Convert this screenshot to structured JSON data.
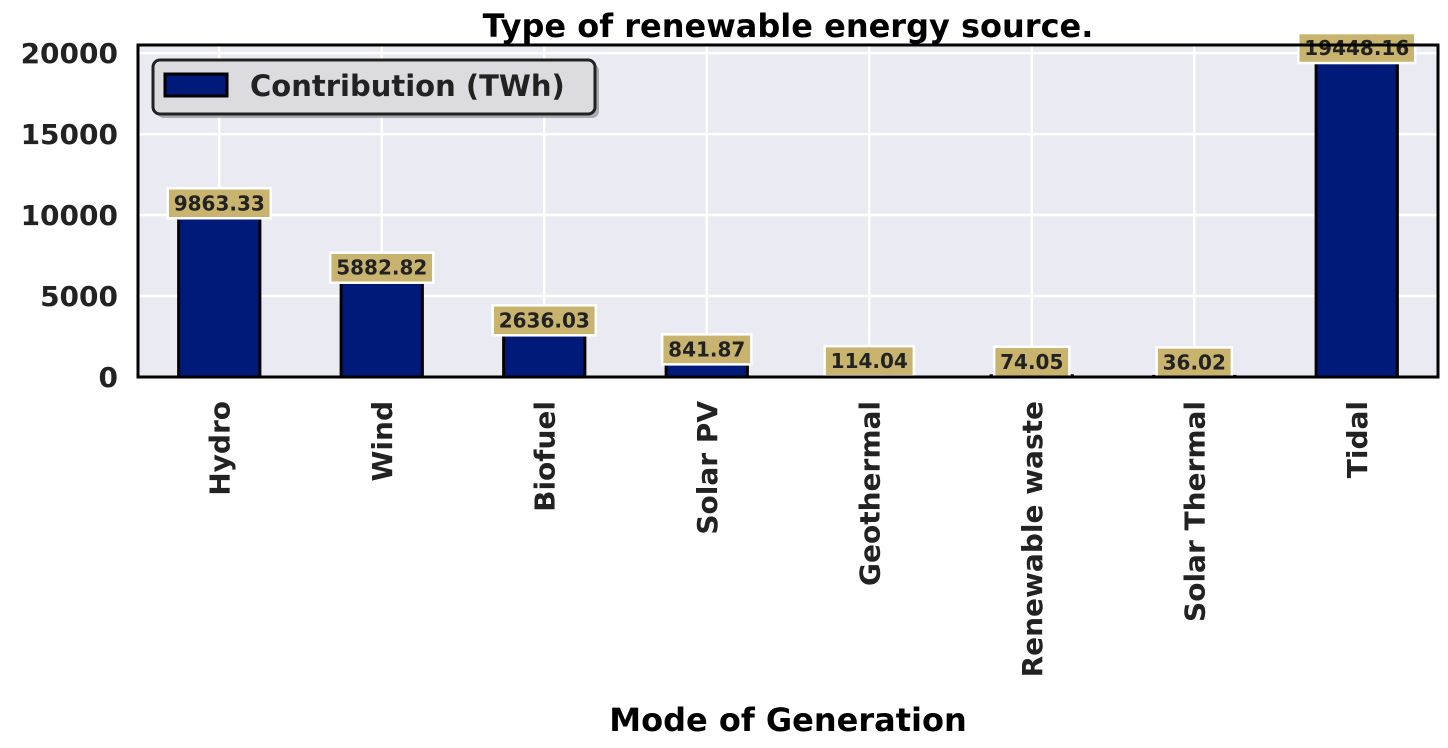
{
  "chart_data": {
    "type": "bar",
    "title": "Type of renewable energy source.",
    "xlabel": "Mode of Generation",
    "ylabel": "",
    "categories": [
      "Hydro",
      "Wind",
      "Biofuel",
      "Solar PV",
      "Geothermal",
      "Renewable waste",
      "Solar Thermal",
      "Tidal"
    ],
    "series": [
      {
        "name": "Contribution (TWh)",
        "values": [
          9863.33,
          5882.82,
          2636.03,
          841.87,
          114.04,
          74.05,
          36.02,
          19448.16
        ],
        "labels": [
          "9863.33",
          "5882.82",
          "2636.03",
          "841.87",
          "114.04",
          "74.05",
          "36.02",
          "19448.16"
        ]
      }
    ],
    "ylim": [
      0,
      20500
    ],
    "yticks": [
      0,
      5000,
      10000,
      15000,
      20000
    ],
    "ytick_labels": [
      "0",
      "5000",
      "10000",
      "15000",
      "20000"
    ],
    "grid": true,
    "legend_position": "top-left",
    "colors": {
      "bar": "#001a7a",
      "bar_edge": "#000000",
      "plot_background": "#eaeaf2",
      "grid": "#ffffff",
      "label_box": "#c8b46e",
      "legend_background": "#dcdce0"
    }
  }
}
